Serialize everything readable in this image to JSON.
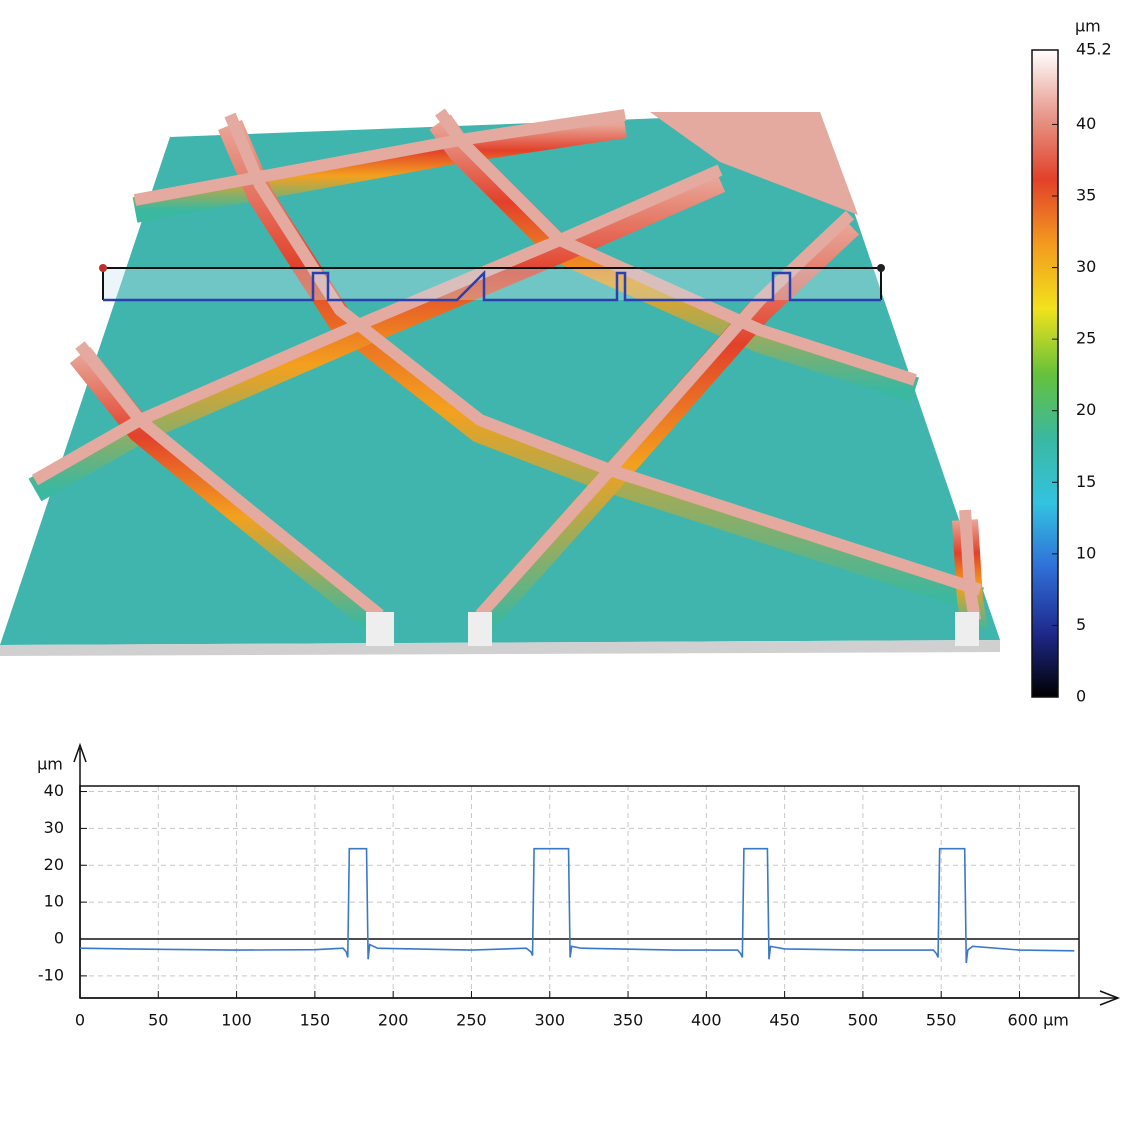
{
  "chart_data": [
    {
      "type": "colorbar",
      "unit": "µm",
      "ylim": [
        0,
        45.2
      ],
      "yticks": [
        0,
        5,
        10,
        15,
        20,
        25,
        30,
        35,
        40,
        45.2
      ],
      "colors": [
        "#000000",
        "#1f2a8c",
        "#2f6fd8",
        "#33c3e0",
        "#3ab8a0",
        "#66c23a",
        "#f1e21c",
        "#f39a1e",
        "#e2412a",
        "#e79a8c",
        "#ffffff"
      ]
    },
    {
      "type": "line",
      "y_unit": "µm",
      "color": "#3a78c8",
      "grid": true,
      "xlim": [
        0,
        638
      ],
      "ylim": [
        -16,
        41.5
      ],
      "xticks": [
        0,
        50,
        100,
        150,
        200,
        250,
        300,
        350,
        400,
        450,
        500,
        550,
        {
          "value": 600,
          "label": "600 µm"
        }
      ],
      "yticks": [
        -10,
        0,
        10,
        20,
        30,
        40
      ],
      "x": [
        0,
        50,
        100,
        150,
        168,
        170,
        171,
        172,
        183,
        184,
        185,
        190,
        250,
        285,
        288,
        289,
        290,
        312,
        313,
        314,
        320,
        380,
        420,
        422,
        423,
        424,
        439,
        440,
        441,
        450,
        500,
        545,
        547,
        548,
        549,
        565,
        566,
        567,
        570,
        600,
        635
      ],
      "values": [
        -2.5,
        -2.8,
        -3,
        -2.9,
        -2.5,
        -3.5,
        -5,
        24.5,
        24.5,
        -5.5,
        -1.5,
        -2.5,
        -3,
        -2.5,
        -3.5,
        -4.5,
        24.5,
        24.5,
        -5,
        -2,
        -2.5,
        -3,
        -3,
        -4,
        -5,
        24.5,
        24.5,
        -5.5,
        -2,
        -2.7,
        -3,
        -3,
        -4,
        -5,
        24.5,
        24.5,
        -6.5,
        -3,
        -2,
        -3,
        -3.2
      ]
    }
  ]
}
